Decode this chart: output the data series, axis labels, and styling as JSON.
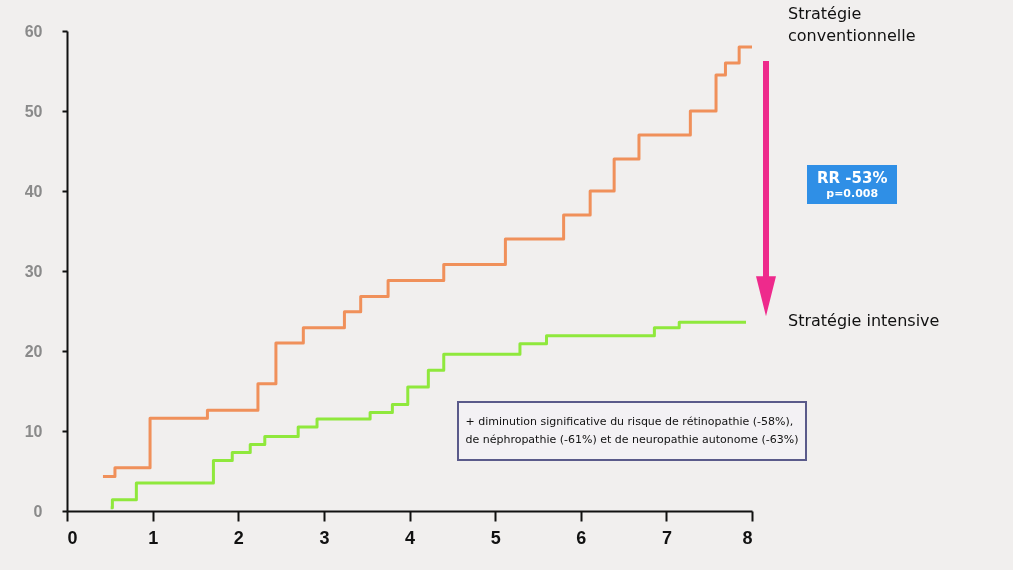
{
  "chart_data": {
    "type": "step",
    "series": [
      {
        "name": "Stratégie conventionnelle",
        "color": "#f0905a",
        "x": [
          0.42,
          0.56,
          0.97,
          1.64,
          2.23,
          2.44,
          2.76,
          3.24,
          3.43,
          3.75,
          4.4,
          5.12,
          5.8,
          6.11,
          6.39,
          6.68,
          7.28,
          7.58,
          7.69,
          7.85,
          8.0
        ],
        "values": [
          4.3,
          5.4,
          11.6,
          12.6,
          15.9,
          21,
          22.9,
          24.9,
          26.8,
          28.8,
          30.8,
          34,
          37,
          40,
          44,
          47,
          50,
          54.5,
          56,
          58,
          58
        ]
      },
      {
        "name": "Stratégie intensive",
        "color": "#8fe83c",
        "x": [
          0.51,
          0.53,
          0.81,
          1.71,
          1.93,
          2.14,
          2.31,
          2.7,
          2.92,
          3.54,
          3.8,
          3.98,
          4.22,
          4.4,
          5.29,
          5.6,
          6.86,
          7.15,
          7.93
        ],
        "values": [
          0.4,
          1.4,
          3.5,
          6.3,
          7.3,
          8.3,
          9.3,
          10.5,
          11.5,
          12.3,
          13.3,
          15.5,
          17.6,
          19.6,
          20.9,
          21.9,
          22.9,
          23.6,
          23.6
        ]
      }
    ],
    "xlim": [
      0,
      8
    ],
    "xticks": [
      0,
      1,
      2,
      3,
      4,
      5,
      6,
      7,
      8
    ],
    "ylim": [
      0,
      60
    ],
    "yticks": [
      0,
      10,
      20,
      30,
      40,
      50,
      60
    ],
    "annotations": [
      "RR -53%",
      "p=0.008",
      "+ diminution significative du risque de rétinopathie (-58%),",
      "de néphropathie (-61%) et de neuropathie autonome (-63%)"
    ]
  }
}
